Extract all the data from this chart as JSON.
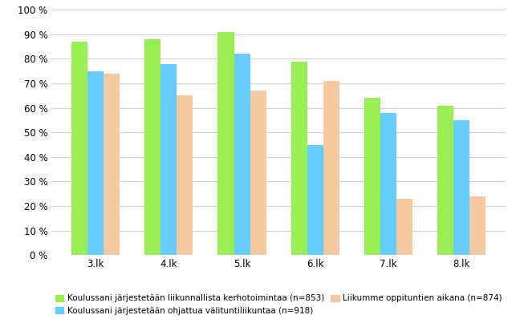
{
  "categories": [
    "3.lk",
    "4.lk",
    "5.lk",
    "6.lk",
    "7.lk",
    "8.lk"
  ],
  "series": [
    {
      "name": "Koulussani järjestetään liikunnallista kerhotoimintaa (n=853)",
      "values": [
        87,
        88,
        91,
        79,
        64,
        61
      ],
      "color": "#99ee55"
    },
    {
      "name": "Koulussani järjestetään ohjattua välituntiliikuntaa (n=918)",
      "values": [
        75,
        78,
        82,
        45,
        58,
        55
      ],
      "color": "#66ccff"
    },
    {
      "name": "Liikumme oppituntien aikana (n=874)",
      "values": [
        74,
        65,
        67,
        71,
        23,
        24
      ],
      "color": "#f5c9a0"
    }
  ],
  "ylim": [
    0,
    100
  ],
  "yticks": [
    0,
    10,
    20,
    30,
    40,
    50,
    60,
    70,
    80,
    90,
    100
  ],
  "background_color": "#ffffff",
  "grid_color": "#d0d0d0",
  "bar_width": 0.22,
  "legend_fontsize": 7.5,
  "tick_fontsize": 8.5,
  "figsize": [
    6.43,
    4.08
  ],
  "dpi": 100
}
